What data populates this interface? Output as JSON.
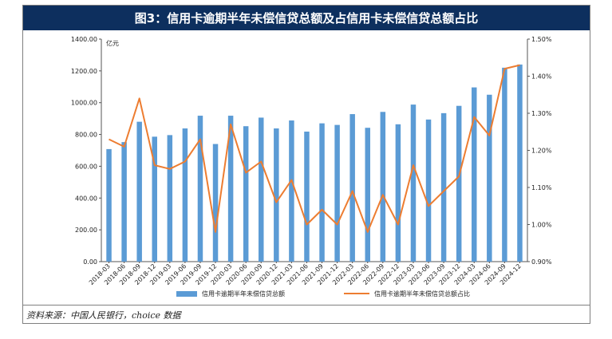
{
  "header": {
    "title": "图3：信用卡逾期半年未偿信贷总额及占信用卡未偿信贷总额占比"
  },
  "source": {
    "text": "资料来源：中国人民银行，choice 数据"
  },
  "colors": {
    "bar": "#5b9bd5",
    "line": "#ed7d31",
    "header_bg": "#0d2f5e"
  },
  "chart_data": {
    "type": "bar",
    "categories": [
      "2018-03",
      "2018-06",
      "2018-09",
      "2018-12",
      "2019-03",
      "2019-06",
      "2019-09",
      "2019-12",
      "2020-03",
      "2020-06",
      "2020-09",
      "2020-12",
      "2021-03",
      "2021-06",
      "2021-09",
      "2021-12",
      "2022-03",
      "2022-06",
      "2022-09",
      "2022-12",
      "2023-03",
      "2023-06",
      "2023-09",
      "2023-12",
      "2024-03",
      "2024-06",
      "2024-09",
      "2024-12"
    ],
    "series": [
      {
        "name": "信用卡逾期半年未偿信贷总额",
        "type": "bar",
        "axis": "left",
        "values": [
          708,
          752,
          880,
          786,
          796,
          838,
          918,
          740,
          918,
          852,
          906,
          838,
          888,
          818,
          870,
          860,
          928,
          842,
          942,
          864,
          988,
          894,
          934,
          980,
          1096,
          1050,
          1220,
          1240
        ]
      },
      {
        "name": "信用卡逾期半年未偿信贷总额占比",
        "type": "line",
        "axis": "right",
        "values": [
          1.23,
          1.21,
          1.34,
          1.16,
          1.15,
          1.17,
          1.23,
          0.98,
          1.27,
          1.14,
          1.17,
          1.06,
          1.12,
          1.0,
          1.04,
          1.0,
          1.09,
          0.98,
          1.08,
          1.0,
          1.16,
          1.05,
          1.09,
          1.13,
          1.29,
          1.24,
          1.42,
          1.43
        ]
      }
    ],
    "ylabel": "亿元",
    "ylim": [
      0,
      1400
    ],
    "yticks": [
      "0.00",
      "200.00",
      "400.00",
      "600.00",
      "800.00",
      "1000.00",
      "1200.00",
      "1400.00"
    ],
    "y2lim": [
      0.9,
      1.5
    ],
    "y2ticks": [
      "0.90%",
      "1.00%",
      "1.10%",
      "1.20%",
      "1.30%",
      "1.40%",
      "1.50%"
    ],
    "legend_position": "bottom",
    "grid": false
  }
}
